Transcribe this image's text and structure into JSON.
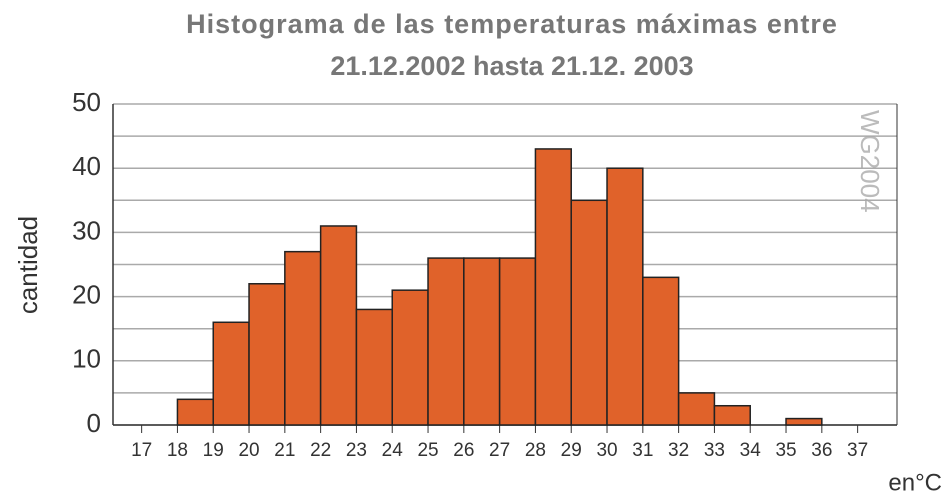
{
  "chart_data": {
    "type": "histogram",
    "title": "Histograma de las temperaturas máximas entre",
    "subtitle": "21.12.2002 hasta 21.12. 2003",
    "x_label": "en°C",
    "y_label": "cantidad",
    "watermark": "WG2004",
    "bins": [
      17,
      18,
      19,
      20,
      21,
      22,
      23,
      24,
      25,
      26,
      27,
      28,
      29,
      30,
      31,
      32,
      33,
      34,
      35,
      36,
      37
    ],
    "values": [
      0,
      4,
      16,
      22,
      27,
      31,
      18,
      21,
      26,
      26,
      26,
      43,
      35,
      40,
      23,
      5,
      3,
      0,
      1,
      0
    ],
    "color": "#e0622a",
    "xlim": [
      16.2,
      38.1
    ],
    "xticks": [
      17,
      18,
      19,
      20,
      21,
      22,
      23,
      24,
      25,
      26,
      27,
      28,
      29,
      30,
      31,
      32,
      33,
      34,
      35,
      36,
      37
    ],
    "ylim": [
      0,
      50
    ],
    "yticks": [
      0,
      10,
      20,
      30,
      40,
      50
    ],
    "y_minor_ticks": [
      5,
      15,
      25,
      35,
      45
    ],
    "grid": true
  }
}
